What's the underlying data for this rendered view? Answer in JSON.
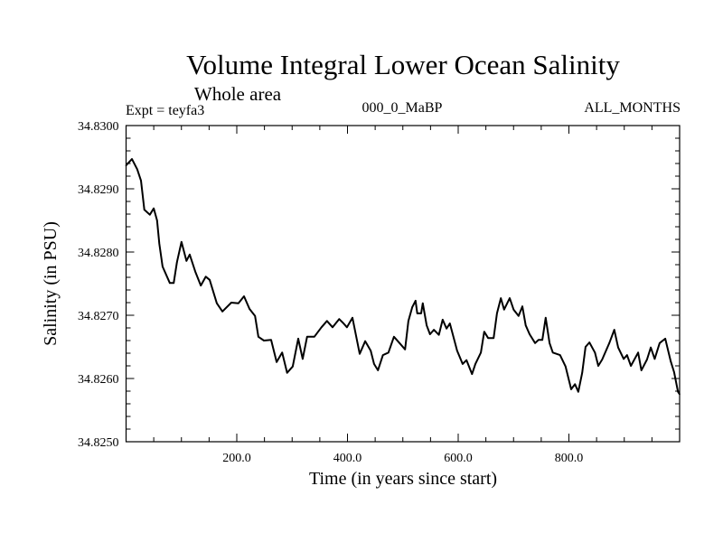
{
  "chart_data": {
    "type": "line",
    "title": "Volume Integral Lower Ocean Salinity",
    "subtitle": "Whole area",
    "annotations": {
      "experiment": "Expt = teyfa3",
      "period": "000_0_MaBP",
      "months": "ALL_MONTHS"
    },
    "xlabel": "Time (in years since start)",
    "ylabel": "Salinity (in PSU)",
    "xlim": [
      0,
      1000
    ],
    "ylim": [
      34.825,
      34.83
    ],
    "x_ticks": [
      200,
      400,
      600,
      800
    ],
    "x_tick_labels": [
      "200.0",
      "400.0",
      "600.0",
      "800.0"
    ],
    "x_minor_step": 50,
    "y_ticks": [
      34.825,
      34.826,
      34.827,
      34.828,
      34.829,
      34.83
    ],
    "y_tick_labels": [
      "34.8250",
      "34.8260",
      "34.8270",
      "34.8280",
      "34.8290",
      "34.8300"
    ],
    "y_minor_step": 0.0002,
    "grid": false,
    "legend": "none",
    "line_color": "#000000",
    "series": [
      {
        "name": "Salinity",
        "x": [
          0,
          10.6,
          20,
          27,
          33,
          43,
          50,
          56,
          60,
          66,
          79,
          86,
          92,
          100,
          109,
          115,
          125,
          135,
          144,
          151,
          164,
          174,
          190,
          203,
          213,
          223,
          233,
          239,
          249,
          262,
          272,
          282,
          291,
          301,
          311,
          319,
          327,
          340,
          353,
          363,
          373,
          385,
          393,
          399,
          409,
          422,
          432,
          442,
          448,
          455,
          464,
          474,
          484,
          494,
          504,
          510,
          517,
          523,
          526,
          533,
          536,
          543,
          549,
          556,
          565,
          572,
          579,
          585,
          598,
          608,
          615,
          625,
          631,
          641,
          647,
          654,
          664,
          670,
          677,
          683,
          693,
          700,
          709,
          716,
          722,
          729,
          739,
          745,
          752,
          758,
          765,
          771,
          784,
          794,
          804,
          811,
          817,
          824,
          830,
          837,
          847,
          853,
          860,
          873,
          882,
          889,
          899,
          905,
          912,
          925,
          931,
          941,
          948,
          955,
          964,
          974,
          984,
          990,
          997,
          1000
        ],
        "values": [
          34.82937,
          34.82947,
          34.82931,
          34.82913,
          34.82867,
          34.82859,
          34.82869,
          34.8285,
          34.82813,
          34.82777,
          34.82751,
          34.82751,
          34.82784,
          34.82816,
          34.82786,
          34.82796,
          34.82769,
          34.82747,
          34.82761,
          34.82756,
          34.82719,
          34.82706,
          34.8272,
          34.82719,
          34.8273,
          34.8271,
          34.82699,
          34.82666,
          34.8266,
          34.82661,
          34.82626,
          34.82641,
          34.82609,
          34.82619,
          34.82663,
          34.82631,
          34.82666,
          34.82666,
          34.82681,
          34.82691,
          34.82681,
          34.82694,
          34.82687,
          34.82681,
          34.82696,
          34.82639,
          34.82659,
          34.82644,
          34.82623,
          34.82613,
          34.82637,
          34.82641,
          34.82666,
          34.82656,
          34.82646,
          34.82691,
          34.82713,
          34.82723,
          34.82703,
          34.82703,
          34.82719,
          34.82684,
          34.8267,
          34.82677,
          34.82669,
          34.82693,
          34.82679,
          34.82687,
          34.82644,
          34.82623,
          34.82629,
          34.82607,
          34.82623,
          34.82641,
          34.82674,
          34.82664,
          34.82664,
          34.82703,
          34.82727,
          34.82709,
          34.82727,
          34.82709,
          34.82699,
          34.82714,
          34.82684,
          34.8267,
          34.82656,
          34.82661,
          34.82661,
          34.82696,
          34.82656,
          34.82641,
          34.82637,
          34.82619,
          34.82583,
          34.82591,
          34.82579,
          34.82609,
          34.8265,
          34.82657,
          34.82641,
          34.8262,
          34.8263,
          34.82656,
          34.82677,
          34.82649,
          34.82631,
          34.82637,
          34.8262,
          34.82641,
          34.82613,
          34.8263,
          34.82649,
          34.82631,
          34.82656,
          34.82663,
          34.82627,
          34.8261,
          34.82579,
          34.82575
        ]
      }
    ]
  }
}
